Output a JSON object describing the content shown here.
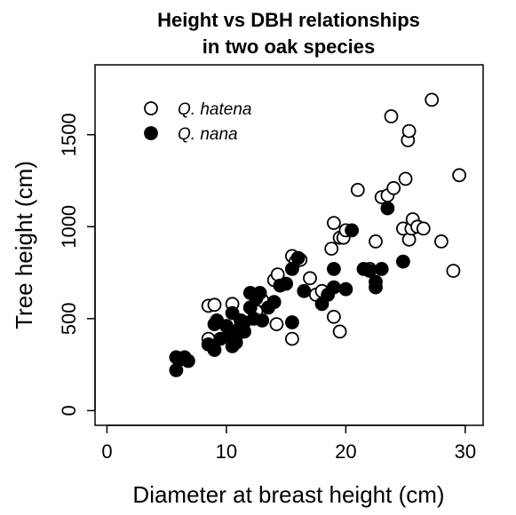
{
  "chart_data": {
    "type": "scatter",
    "title_lines": [
      "Height vs DBH relationships",
      "in two oak species"
    ],
    "xlabel": "Diameter at breast height (cm)",
    "ylabel": "Tree height (cm)",
    "xlim": [
      -1,
      31.5
    ],
    "ylim": [
      -80,
      1880
    ],
    "x_ticks": [
      0,
      10,
      20,
      30
    ],
    "y_ticks": [
      0,
      500,
      1000,
      1500
    ],
    "grid": false,
    "legend_position": "top-left",
    "series": [
      {
        "name": "Q. hatena",
        "marker": "open-circle",
        "color": "#000000",
        "points": [
          [
            8.5,
            570
          ],
          [
            9.0,
            575
          ],
          [
            8.5,
            390
          ],
          [
            10.5,
            580
          ],
          [
            11.0,
            420
          ],
          [
            12.0,
            560
          ],
          [
            12.5,
            540
          ],
          [
            13.0,
            600
          ],
          [
            14.0,
            710
          ],
          [
            14.3,
            740
          ],
          [
            14.2,
            470
          ],
          [
            15.5,
            840
          ],
          [
            15.8,
            810
          ],
          [
            16.2,
            820
          ],
          [
            15.5,
            390
          ],
          [
            17.0,
            720
          ],
          [
            17.5,
            630
          ],
          [
            18.0,
            650
          ],
          [
            18.8,
            880
          ],
          [
            19.0,
            1020
          ],
          [
            19.5,
            940
          ],
          [
            19.8,
            940
          ],
          [
            19.0,
            510
          ],
          [
            19.5,
            430
          ],
          [
            20.0,
            980
          ],
          [
            21.0,
            1200
          ],
          [
            22.0,
            770
          ],
          [
            22.5,
            920
          ],
          [
            23.0,
            1160
          ],
          [
            23.5,
            1170
          ],
          [
            24.0,
            1210
          ],
          [
            23.8,
            1600
          ],
          [
            25.0,
            1260
          ],
          [
            25.2,
            1470
          ],
          [
            25.3,
            1520
          ],
          [
            24.8,
            990
          ],
          [
            25.3,
            930
          ],
          [
            25.5,
            990
          ],
          [
            25.6,
            1040
          ],
          [
            26.0,
            1000
          ],
          [
            26.5,
            990
          ],
          [
            27.2,
            1690
          ],
          [
            28.0,
            920
          ],
          [
            29.0,
            760
          ],
          [
            29.5,
            1280
          ]
        ]
      },
      {
        "name": "Q. nana",
        "marker": "filled-circle",
        "color": "#000000",
        "points": [
          [
            5.8,
            290
          ],
          [
            5.8,
            220
          ],
          [
            6.2,
            280
          ],
          [
            6.5,
            290
          ],
          [
            6.8,
            270
          ],
          [
            8.5,
            360
          ],
          [
            9.0,
            330
          ],
          [
            9.0,
            470
          ],
          [
            9.2,
            490
          ],
          [
            9.5,
            390
          ],
          [
            10.0,
            460
          ],
          [
            10.2,
            410
          ],
          [
            10.5,
            350
          ],
          [
            10.5,
            530
          ],
          [
            10.8,
            370
          ],
          [
            11.0,
            440
          ],
          [
            11.2,
            490
          ],
          [
            11.5,
            430
          ],
          [
            11.5,
            480
          ],
          [
            12.0,
            640
          ],
          [
            12.0,
            560
          ],
          [
            12.3,
            500
          ],
          [
            12.5,
            610
          ],
          [
            12.8,
            640
          ],
          [
            13.0,
            490
          ],
          [
            13.5,
            560
          ],
          [
            14.0,
            590
          ],
          [
            14.5,
            680
          ],
          [
            15.0,
            690
          ],
          [
            15.5,
            770
          ],
          [
            15.5,
            480
          ],
          [
            16.0,
            830
          ],
          [
            16.5,
            650
          ],
          [
            18.0,
            580
          ],
          [
            18.5,
            630
          ],
          [
            19.0,
            670
          ],
          [
            19.0,
            770
          ],
          [
            20.0,
            660
          ],
          [
            20.5,
            980
          ],
          [
            21.5,
            770
          ],
          [
            22.0,
            760
          ],
          [
            22.5,
            670
          ],
          [
            22.5,
            700
          ],
          [
            23.0,
            770
          ],
          [
            23.5,
            1100
          ],
          [
            24.8,
            810
          ]
        ]
      }
    ]
  }
}
